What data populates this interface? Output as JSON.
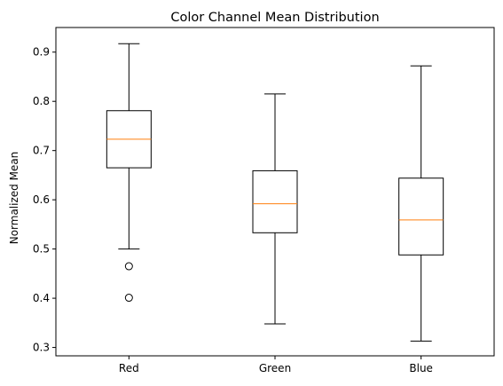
{
  "chart_data": {
    "type": "box",
    "title": "Color Channel Mean Distribution",
    "xlabel": "",
    "ylabel": "Normalized Mean",
    "ylim": [
      0.283,
      0.95
    ],
    "yticks": [
      0.3,
      0.4,
      0.5,
      0.6,
      0.7,
      0.8,
      0.9
    ],
    "ytick_labels": [
      "0.3",
      "0.4",
      "0.5",
      "0.6",
      "0.7",
      "0.8",
      "0.9"
    ],
    "grid": false,
    "categories": [
      "Red",
      "Green",
      "Blue"
    ],
    "boxes": [
      {
        "category": "Red",
        "whisker_low": 0.5,
        "q1": 0.665,
        "median": 0.723,
        "q3": 0.781,
        "whisker_high": 0.917,
        "outliers": [
          0.465,
          0.401
        ]
      },
      {
        "category": "Green",
        "whisker_low": 0.348,
        "q1": 0.533,
        "median": 0.592,
        "q3": 0.659,
        "whisker_high": 0.815,
        "outliers": []
      },
      {
        "category": "Blue",
        "whisker_low": 0.313,
        "q1": 0.488,
        "median": 0.559,
        "q3": 0.644,
        "whisker_high": 0.872,
        "outliers": []
      }
    ],
    "colors": {
      "box": "#000000",
      "median": "#ff7f0e",
      "outlier": "#000000"
    }
  }
}
